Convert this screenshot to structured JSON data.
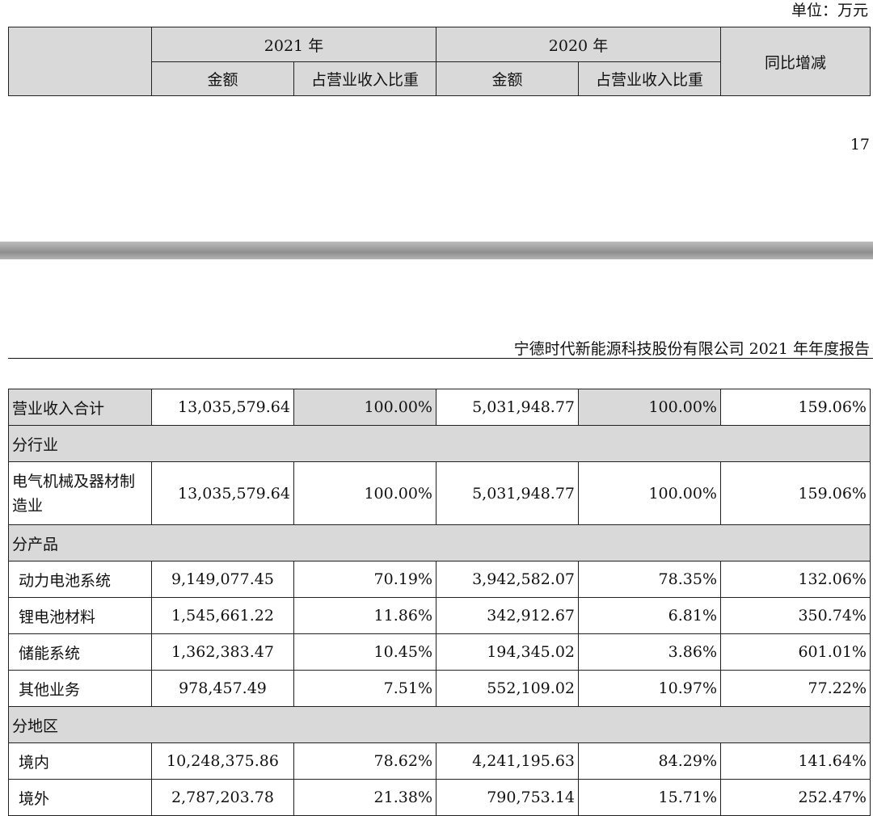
{
  "page": {
    "unit_label": "单位：万元",
    "page_number": "17",
    "report_header": "宁德时代新能源科技股份有限公司 2021 年年度报告"
  },
  "table_header": {
    "year_2021": "2021 年",
    "year_2020": "2020 年",
    "yoy": "同比增减",
    "amount": "金额",
    "ratio": "占营业收入比重"
  },
  "rows": [
    {
      "label": "营业收入合计",
      "amt2021": "13,035,579.64",
      "pct2021": "100.00%",
      "amt2020": "5,031,948.77",
      "pct2020": "100.00%",
      "yoy": "159.06%"
    },
    {
      "label": "分行业"
    },
    {
      "label": "电气机械及器材制造业",
      "amt2021": "13,035,579.64",
      "pct2021": "100.00%",
      "amt2020": "5,031,948.77",
      "pct2020": "100.00%",
      "yoy": "159.06%"
    },
    {
      "label": "分产品"
    },
    {
      "label": "动力电池系统",
      "amt2021": "9,149,077.45",
      "pct2021": "70.19%",
      "amt2020": "3,942,582.07",
      "pct2020": "78.35%",
      "yoy": "132.06%"
    },
    {
      "label": "锂电池材料",
      "amt2021": "1,545,661.22",
      "pct2021": "11.86%",
      "amt2020": "342,912.67",
      "pct2020": "6.81%",
      "yoy": "350.74%"
    },
    {
      "label": "储能系统",
      "amt2021": "1,362,383.47",
      "pct2021": "10.45%",
      "amt2020": "194,345.02",
      "pct2020": "3.86%",
      "yoy": "601.01%"
    },
    {
      "label": "其他业务",
      "amt2021": "978,457.49",
      "pct2021": "7.51%",
      "amt2020": "552,109.02",
      "pct2020": "10.97%",
      "yoy": "77.22%"
    },
    {
      "label": "分地区"
    },
    {
      "label": "境内",
      "amt2021": "10,248,375.86",
      "pct2021": "78.62%",
      "amt2020": "4,241,195.63",
      "pct2020": "84.29%",
      "yoy": "141.64%"
    },
    {
      "label": "境外",
      "amt2021": "2,787,203.78",
      "pct2021": "21.38%",
      "amt2020": "790,753.14",
      "pct2020": "15.71%",
      "yoy": "252.47%"
    }
  ]
}
